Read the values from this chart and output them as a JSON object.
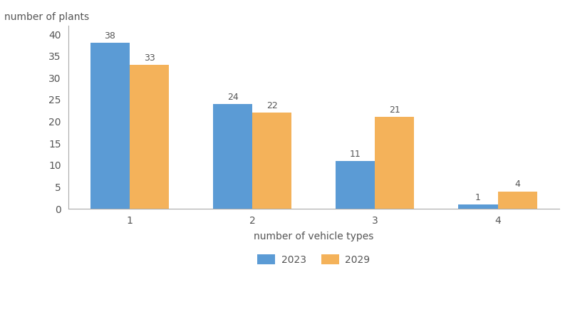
{
  "categories": [
    1,
    2,
    3,
    4
  ],
  "values_2023": [
    38,
    24,
    11,
    1
  ],
  "values_2029": [
    33,
    22,
    21,
    4
  ],
  "color_2023": "#5b9bd5",
  "color_2029": "#f4b25a",
  "xlabel": "number of vehicle types",
  "ylabel": "number of plants",
  "ylim": [
    0,
    42
  ],
  "yticks": [
    0,
    5,
    10,
    15,
    20,
    25,
    30,
    35,
    40
  ],
  "legend_labels": [
    "2023",
    "2029"
  ],
  "bar_width": 0.32,
  "label_fontsize": 10,
  "axis_label_fontsize": 10,
  "tick_fontsize": 10,
  "annotation_fontsize": 9,
  "background_color": "#ffffff"
}
